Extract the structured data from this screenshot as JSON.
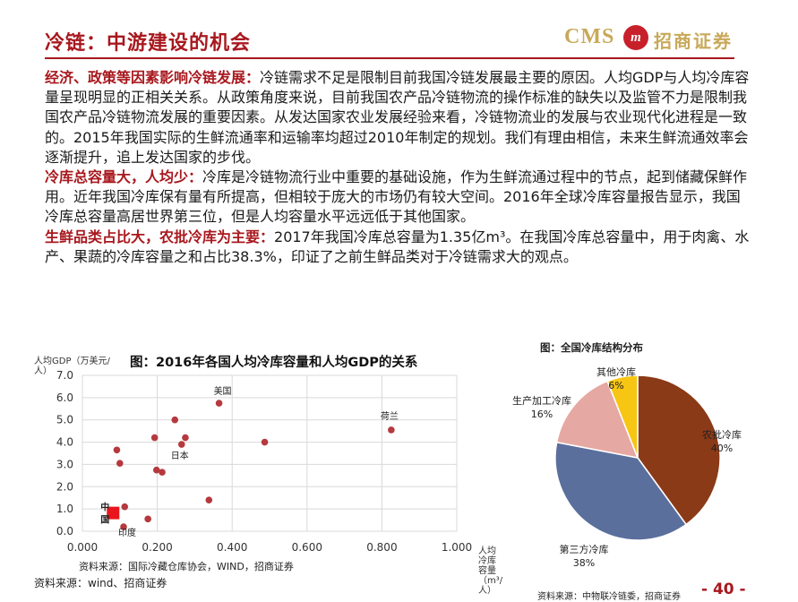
{
  "header": {
    "title": "冷链：中游建设的机会",
    "logo_en": "CMS",
    "logo_badge": "m",
    "logo_cn": "招商证券"
  },
  "paragraphs": [
    {
      "heading": "经济、政策等因素影响冷链发展：",
      "text": "冷链需求不足是限制目前我国冷链发展最主要的原因。人均GDP与人均冷库容量呈现明显的正相关关系。从政策角度来说，目前我国农产品冷链物流的操作标准的缺失以及监管不力是限制我国农产品冷链物流发展的重要因素。从发达国家农业发展经验来看，冷链物流业的发展与农业现代化进程是一致的。2015年我国实际的生鲜流通率和运输率均超过2010年制定的规划。我们有理由相信，未来生鲜流通效率会逐渐提升，追上发达国家的步伐。"
    },
    {
      "heading": "冷库总容量大，人均少：",
      "text": "冷库是冷链物流行业中重要的基础设施，作为生鲜流通过程中的节点，起到储藏保鲜作用。近年我国冷库保有量有所提高，但相较于庞大的市场仍有较大空间。2016年全球冷库容量报告显示，我国冷库总容量高居世界第三位，但是人均容量水平远远低于其他国家。"
    },
    {
      "heading": "生鲜品类占比大，农批冷库为主要：",
      "text": "2017年我国冷库总容量为1.35亿m³。在我国冷库总容量中，用于肉禽、水产、果蔬的冷库容量之和占比38.3%，印证了之前生鲜品类对于冷链需求大的观点。"
    }
  ],
  "scatter": {
    "title": "图：2016年各国人均冷库容量和人均GDP的关系",
    "ylabel": "人均GDP（万美元/人）",
    "xlabel": "人均冷库容量（m³/人）",
    "source": "资料来源：国际冷藏仓库协会，WIND，招商证券",
    "point_color": "#b5393e",
    "highlight_color": "#e8161c"
  },
  "chart_data": [
    {
      "type": "scatter",
      "title": "图：2016年各国人均冷库容量和人均GDP的关系",
      "xlabel": "人均冷库容量（m³/人）",
      "ylabel": "人均GDP（万美元/人）",
      "xlim": [
        0,
        1.0
      ],
      "ylim": [
        0,
        7.0
      ],
      "x_ticks": [
        "0.000",
        "0.200",
        "0.400",
        "0.600",
        "0.800",
        "1.000"
      ],
      "y_ticks": [
        "0.0",
        "1.0",
        "2.0",
        "3.0",
        "4.0",
        "5.0",
        "6.0",
        "7.0"
      ],
      "grid": true,
      "points": [
        {
          "x": 0.365,
          "y": 5.75,
          "label": "美国"
        },
        {
          "x": 0.825,
          "y": 4.55,
          "label": "荷兰"
        },
        {
          "x": 0.265,
          "y": 3.9,
          "label": "日本"
        },
        {
          "x": 0.247,
          "y": 5.0,
          "label": ""
        },
        {
          "x": 0.193,
          "y": 4.2,
          "label": ""
        },
        {
          "x": 0.275,
          "y": 4.2,
          "label": ""
        },
        {
          "x": 0.487,
          "y": 4.0,
          "label": ""
        },
        {
          "x": 0.092,
          "y": 3.65,
          "label": ""
        },
        {
          "x": 0.1,
          "y": 3.05,
          "label": ""
        },
        {
          "x": 0.198,
          "y": 2.75,
          "label": ""
        },
        {
          "x": 0.213,
          "y": 2.65,
          "label": ""
        },
        {
          "x": 0.338,
          "y": 1.4,
          "label": ""
        },
        {
          "x": 0.113,
          "y": 1.1,
          "label": ""
        },
        {
          "x": 0.175,
          "y": 0.55,
          "label": ""
        },
        {
          "x": 0.11,
          "y": 0.2,
          "label": "印度"
        },
        {
          "x": 0.082,
          "y": 0.82,
          "label": "中国",
          "highlight": true
        }
      ]
    },
    {
      "type": "pie",
      "title": "图：全国冷库结构分布",
      "slices": [
        {
          "label": "农批冷库",
          "value": 40,
          "value_label": "40%",
          "color": "#8b3a17"
        },
        {
          "label": "第三方冷库",
          "value": 38,
          "value_label": "38%",
          "color": "#5b6f9d"
        },
        {
          "label": "生产加工冷库",
          "value": 16,
          "value_label": "16%",
          "color": "#e6a8a3"
        },
        {
          "label": "其他冷库",
          "value": 6,
          "value_label": "6%",
          "color": "#f7c614"
        }
      ]
    }
  ],
  "pie": {
    "title": "图：全国冷库结构分布",
    "source": "资料来源：中物联冷链委，招商证券"
  },
  "footer": {
    "source": "资料来源：wind、招商证券",
    "page": "- 40 -"
  }
}
